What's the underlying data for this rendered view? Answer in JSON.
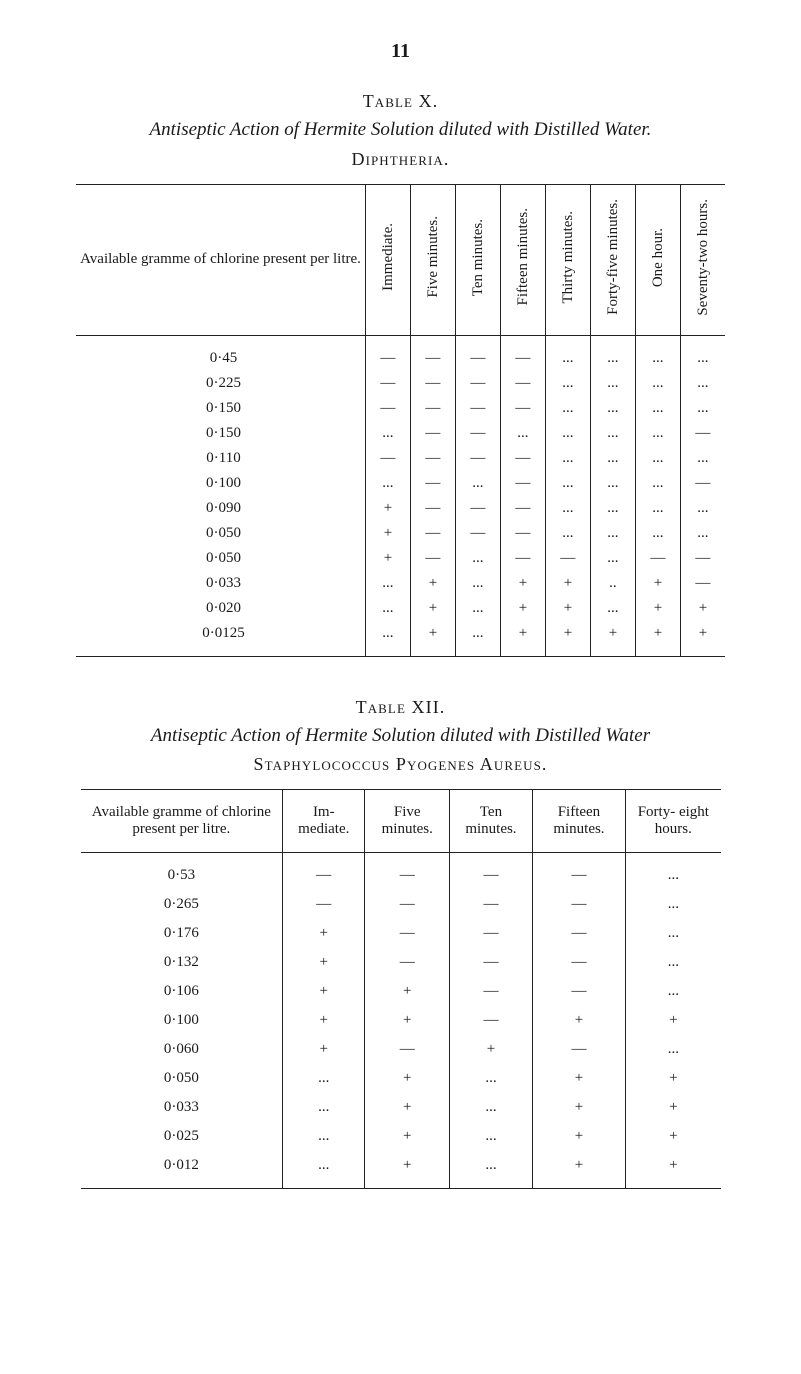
{
  "page_number": "11",
  "tableX": {
    "label": "Table X.",
    "title": "Antiseptic Action of Hermite Solution diluted with Distilled Water.",
    "subtitle": "Diphtheria.",
    "row_header": "Available gramme of chlorine present per litre.",
    "columns": [
      "Immediate.",
      "Five minutes.",
      "Ten minutes.",
      "Fifteen minutes.",
      "Thirty minutes.",
      "Forty-five minutes.",
      "One hour.",
      "Seventy-two hours."
    ],
    "rows": [
      {
        "label": "0·45",
        "cells": [
          "—",
          "—",
          "—",
          "—",
          "...",
          "...",
          "...",
          "..."
        ]
      },
      {
        "label": "0·225",
        "cells": [
          "—",
          "—",
          "—",
          "—",
          "...",
          "...",
          "...",
          "..."
        ]
      },
      {
        "label": "0·150",
        "cells": [
          "—",
          "—",
          "—",
          "—",
          "...",
          "...",
          "...",
          "..."
        ]
      },
      {
        "label": "0·150",
        "cells": [
          "...",
          "—",
          "—",
          "...",
          "...",
          "...",
          "...",
          "—"
        ]
      },
      {
        "label": "0·110",
        "cells": [
          "—",
          "—",
          "—",
          "—",
          "...",
          "...",
          "...",
          "..."
        ]
      },
      {
        "label": "0·100",
        "cells": [
          "...",
          "—",
          "...",
          "—",
          "...",
          "...",
          "...",
          "—"
        ]
      },
      {
        "label": "0·090",
        "cells": [
          "+",
          "—",
          "—",
          "—",
          "...",
          "...",
          "...",
          "..."
        ]
      },
      {
        "label": "0·050",
        "cells": [
          "+",
          "—",
          "—",
          "—",
          "...",
          "...",
          "...",
          "..."
        ]
      },
      {
        "label": "0·050",
        "cells": [
          "+",
          "—",
          "...",
          "—",
          "—",
          "...",
          "—",
          "—"
        ]
      },
      {
        "label": "0·033",
        "cells": [
          "...",
          "+",
          "...",
          "+",
          "+",
          "..",
          "+",
          "—"
        ]
      },
      {
        "label": "0·020",
        "cells": [
          "...",
          "+",
          "...",
          "+",
          "+",
          "...",
          "+",
          "+"
        ]
      },
      {
        "label": "0·0125",
        "cells": [
          "...",
          "+",
          "...",
          "+",
          "+",
          "+",
          "+",
          "+"
        ]
      }
    ]
  },
  "tableXII": {
    "label": "Table XII.",
    "title": "Antiseptic Action of Hermite Solution diluted with Distilled Water",
    "subtitle": "Staphylococcus Pyogenes Aureus.",
    "row_header": "Available gramme of chlorine present per litre.",
    "columns": [
      "Im- mediate.",
      "Five minutes.",
      "Ten minutes.",
      "Fifteen minutes.",
      "Forty- eight hours."
    ],
    "rows": [
      {
        "label": "0·53",
        "cells": [
          "—",
          "—",
          "—",
          "—",
          "..."
        ]
      },
      {
        "label": "0·265",
        "cells": [
          "—",
          "—",
          "—",
          "—",
          "..."
        ]
      },
      {
        "label": "0·176",
        "cells": [
          "+",
          "—",
          "—",
          "—",
          "..."
        ]
      },
      {
        "label": "0·132",
        "cells": [
          "+",
          "—",
          "—",
          "—",
          "..."
        ]
      },
      {
        "label": "0·106",
        "cells": [
          "+",
          "+",
          "—",
          "—",
          "..."
        ]
      },
      {
        "label": "0·100",
        "cells": [
          "+",
          "+",
          "—",
          "+",
          "+"
        ]
      },
      {
        "label": "0·060",
        "cells": [
          "+",
          "—",
          "+",
          "—",
          "..."
        ]
      },
      {
        "label": "0·050",
        "cells": [
          "...",
          "+",
          "...",
          "+",
          "+"
        ]
      },
      {
        "label": "0·033",
        "cells": [
          "...",
          "+",
          "...",
          "+",
          "+"
        ]
      },
      {
        "label": "0·025",
        "cells": [
          "...",
          "+",
          "...",
          "+",
          "+"
        ]
      },
      {
        "label": "0·012",
        "cells": [
          "...",
          "+",
          "...",
          "+",
          "+"
        ]
      }
    ]
  }
}
